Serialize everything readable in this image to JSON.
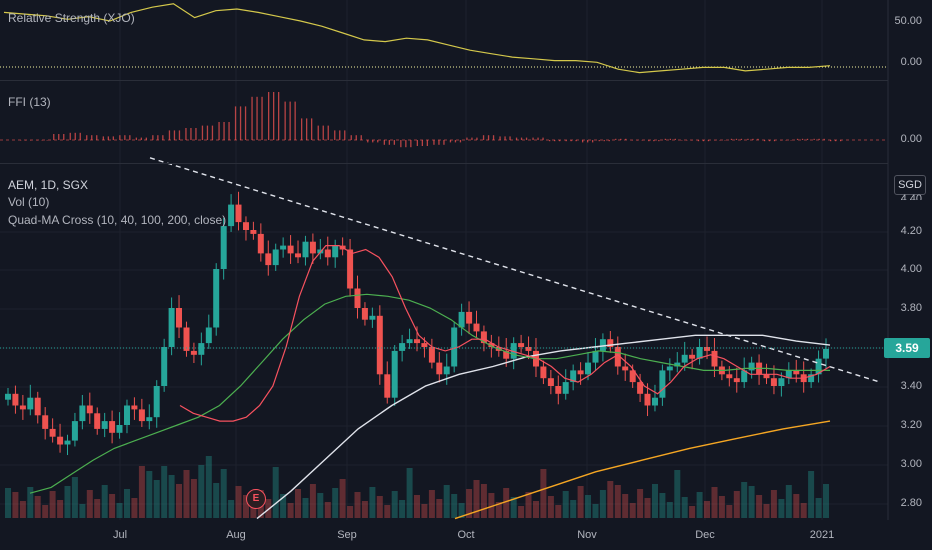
{
  "panes": {
    "rs": {
      "title": "Relative Strength (XJO)",
      "ticks": [
        "50.00",
        "0.00"
      ],
      "color": "#d4c84b"
    },
    "ffi": {
      "title": "FFI (13)",
      "ticks": [
        "0.00"
      ],
      "color": "#ef5350"
    },
    "main": {
      "title": "AEM, 1D, SGX",
      "vol_label": "Vol (10)",
      "ma_label": "Quad-MA Cross (10, 40, 100, 200, close)",
      "currency": "SGD",
      "last_price": "3.59",
      "earnings_badge": "E",
      "price_ticks": [
        "4.40",
        "4.20",
        "4.00",
        "3.80",
        "3.40",
        "3.20",
        "3.00",
        "2.80"
      ],
      "x_ticks": [
        "Jul",
        "Aug",
        "Sep",
        "Oct",
        "Nov",
        "Dec",
        "2021"
      ]
    }
  },
  "colors": {
    "up": "#26a69a",
    "down": "#ef5350",
    "ma10": "#f7525f",
    "ma40": "#4caf50",
    "ma100": "#e0e3eb",
    "ma200": "#f5a623",
    "background": "#131722"
  },
  "chart_data": {
    "type": "candlestick",
    "title": "AEM, 1D, SGX",
    "ylim": [
      2.75,
      4.45
    ],
    "x_range": [
      "Jun",
      "2021-01"
    ],
    "price_series": [
      3.36,
      3.3,
      3.28,
      3.34,
      3.25,
      3.18,
      3.14,
      3.1,
      3.12,
      3.22,
      3.3,
      3.26,
      3.18,
      3.22,
      3.16,
      3.2,
      3.3,
      3.28,
      3.22,
      3.24,
      3.4,
      3.6,
      3.8,
      3.7,
      3.58,
      3.56,
      3.62,
      3.7,
      4.0,
      4.22,
      4.33,
      4.24,
      4.2,
      4.18,
      4.08,
      4.02,
      4.1,
      4.12,
      4.08,
      4.06,
      4.14,
      4.08,
      4.1,
      4.06,
      4.12,
      4.1,
      3.9,
      3.8,
      3.74,
      3.76,
      3.46,
      3.34,
      3.58,
      3.62,
      3.64,
      3.62,
      3.6,
      3.52,
      3.46,
      3.5,
      3.7,
      3.78,
      3.72,
      3.68,
      3.62,
      3.6,
      3.58,
      3.54,
      3.62,
      3.6,
      3.58,
      3.5,
      3.44,
      3.4,
      3.36,
      3.42,
      3.48,
      3.46,
      3.52,
      3.58,
      3.64,
      3.6,
      3.5,
      3.48,
      3.42,
      3.36,
      3.3,
      3.34,
      3.48,
      3.5,
      3.52,
      3.56,
      3.54,
      3.6,
      3.58,
      3.5,
      3.46,
      3.44,
      3.42,
      3.48,
      3.52,
      3.46,
      3.44,
      3.4,
      3.44,
      3.48,
      3.46,
      3.42,
      3.46,
      3.54,
      3.59
    ],
    "ma10": [
      3.3,
      3.26,
      3.24,
      3.22,
      3.22,
      3.24,
      3.3,
      3.4,
      3.6,
      3.86,
      4.04,
      4.12,
      4.12,
      4.08,
      4.1,
      4.06,
      3.96,
      3.8,
      3.66,
      3.6,
      3.58,
      3.6,
      3.64,
      3.64,
      3.6,
      3.58,
      3.56,
      3.54,
      3.5,
      3.44,
      3.42,
      3.46,
      3.52,
      3.56,
      3.5,
      3.4,
      3.36,
      3.42,
      3.5,
      3.54,
      3.56,
      3.54,
      3.5,
      3.46,
      3.46,
      3.46,
      3.44,
      3.44,
      3.46,
      3.5
    ],
    "ma40": [
      2.85,
      2.88,
      2.95,
      3.02,
      3.08,
      3.12,
      3.16,
      3.2,
      3.24,
      3.3,
      3.4,
      3.52,
      3.64,
      3.74,
      3.82,
      3.86,
      3.87,
      3.86,
      3.84,
      3.8,
      3.74,
      3.66,
      3.6,
      3.56,
      3.54,
      3.54,
      3.56,
      3.58,
      3.57,
      3.54,
      3.52,
      3.5,
      3.48,
      3.48,
      3.49,
      3.49,
      3.48,
      3.48,
      3.48
    ],
    "ma100": [
      2.72,
      2.86,
      3.02,
      3.18,
      3.3,
      3.4,
      3.46,
      3.5,
      3.55,
      3.58,
      3.6,
      3.62,
      3.64,
      3.66,
      3.66,
      3.66,
      3.63,
      3.61
    ],
    "ma200": [
      2.72,
      2.8,
      2.88,
      2.96,
      3.02,
      3.08,
      3.13,
      3.18,
      3.22
    ],
    "trendline": [
      [
        4.57,
        0
      ],
      [
        3.42,
        1
      ]
    ],
    "relative_strength": [
      60,
      58,
      56,
      52,
      55,
      50,
      60,
      66,
      70,
      54,
      62,
      64,
      60,
      55,
      50,
      44,
      36,
      28,
      26,
      30,
      28,
      22,
      16,
      12,
      8,
      6,
      4,
      4,
      2,
      -6,
      -10,
      -8,
      -6,
      -4,
      -4,
      -8,
      -6,
      -4,
      -4,
      -2
    ],
    "ffi": [
      0,
      0,
      0.5,
      0.6,
      0.4,
      0.3,
      0.4,
      0.2,
      0.4,
      0.8,
      1.0,
      1.2,
      1.5,
      2.8,
      3.6,
      4.0,
      3.2,
      1.8,
      1.2,
      0.8,
      0.4,
      -0.2,
      -0.4,
      -0.6,
      -0.5,
      -0.4,
      -0.2,
      0.2,
      0.4,
      0.3,
      0.2,
      0.2,
      -0.1,
      -0.1,
      -0.2,
      -0.1,
      0.1,
      0,
      -0.1,
      0.1,
      0,
      -0.1,
      0,
      0.1,
      0.1,
      -0.1,
      0,
      0.1,
      0.1,
      -0.1
    ]
  }
}
